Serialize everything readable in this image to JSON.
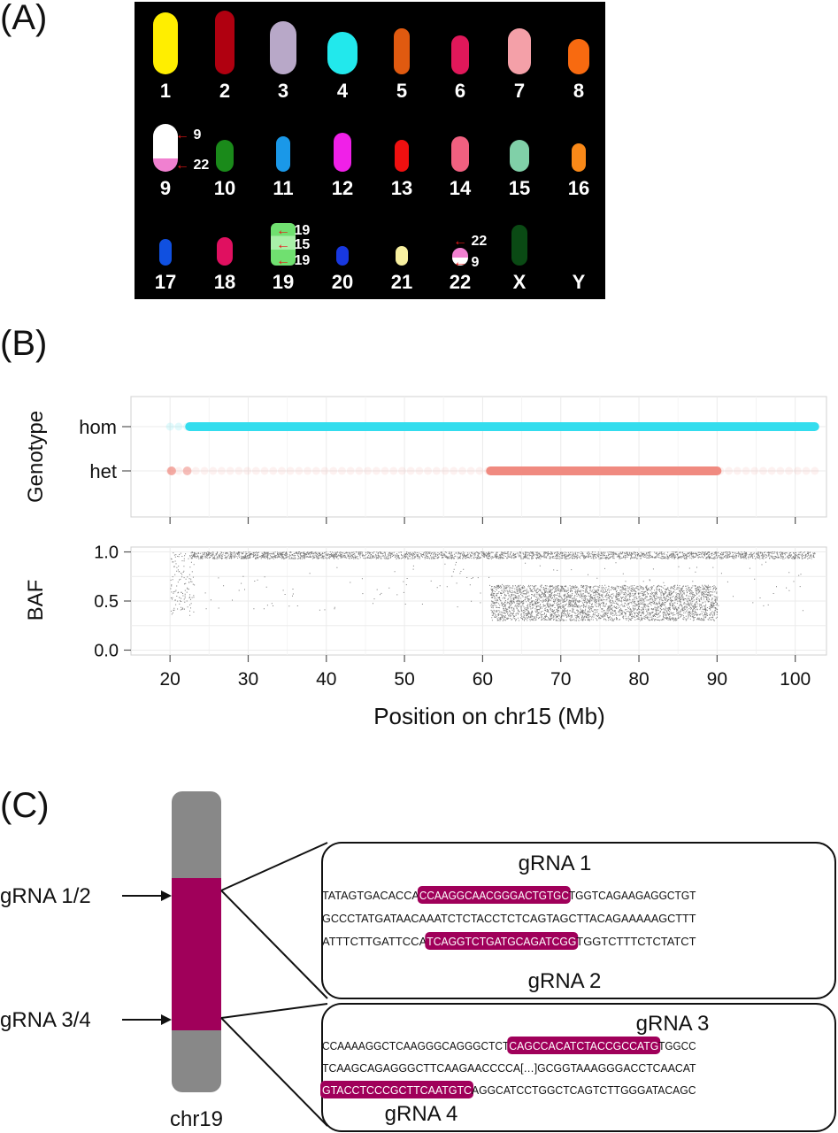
{
  "panels": {
    "a": "(A)",
    "b": "(B)",
    "c": "(C)"
  },
  "karyotype": {
    "chromosomes": [
      {
        "label": "1",
        "color": "#ffee00"
      },
      {
        "label": "2",
        "color": "#b00010"
      },
      {
        "label": "3",
        "color": "#b8a8c8"
      },
      {
        "label": "4",
        "color": "#22e8ec"
      },
      {
        "label": "5",
        "color": "#e05a10"
      },
      {
        "label": "6",
        "color": "#e0185a"
      },
      {
        "label": "7",
        "color": "#f4a0a8"
      },
      {
        "label": "8",
        "color": "#f86a10"
      },
      {
        "label": "9",
        "color": "#ffffff"
      },
      {
        "label": "10",
        "color": "#1a8a1a"
      },
      {
        "label": "11",
        "color": "#1a98e8"
      },
      {
        "label": "12",
        "color": "#f020e8"
      },
      {
        "label": "13",
        "color": "#f01010"
      },
      {
        "label": "14",
        "color": "#f06080"
      },
      {
        "label": "15",
        "color": "#80d0a8"
      },
      {
        "label": "16",
        "color": "#f88818"
      },
      {
        "label": "17",
        "color": "#1050e0"
      },
      {
        "label": "18",
        "color": "#e01060"
      },
      {
        "label": "19",
        "color": "#70e070"
      },
      {
        "label": "20",
        "color": "#1838e0"
      },
      {
        "label": "21",
        "color": "#f8f0a0"
      },
      {
        "label": "22",
        "color": "#f080d0"
      },
      {
        "label": "X",
        "color": "#0a4a14"
      },
      {
        "label": "Y",
        "color": "#000000"
      }
    ],
    "translocation_9": [
      "9",
      "22"
    ],
    "translocation_19": [
      "19",
      "15",
      "19"
    ],
    "translocation_22": [
      "22",
      "9"
    ]
  },
  "genotype_plot": {
    "ylabel": "Genotype",
    "categories": [
      "hom",
      "het"
    ]
  },
  "chart_data": {
    "type": "scatter",
    "xlabel": "Position on chr15 (Mb)",
    "xlim": [
      15,
      104
    ],
    "xticks": [
      20,
      30,
      40,
      50,
      60,
      70,
      80,
      90,
      100
    ],
    "ylabel": "BAF",
    "ylim": [
      -0.05,
      1.05
    ],
    "yticks": [
      "0.0",
      "0.5",
      "1.0"
    ],
    "grid": true,
    "series": [
      {
        "name": "hom",
        "color": "#33ddee",
        "x_range": [
          22.5,
          102.5
        ],
        "y": 1.0
      },
      {
        "name": "het",
        "color": "#f08a80",
        "x_range": [
          61,
          90
        ],
        "y": 0.5
      }
    ]
  },
  "crispr": {
    "chromosome": "chr19",
    "chrom_color": "#a0005a",
    "grna12_label": "gRNA 1/2",
    "grna34_label": "gRNA 3/4",
    "box1": {
      "top_label": "gRNA 1",
      "bottom_label": "gRNA 2",
      "line1": {
        "pre": "TATAGTGACACCA",
        "hl": "CCAAGGCAACGGGACTGTGC",
        "post": "TGGTCAGAAGAGGCTGT"
      },
      "line2": "GCCCTATGATAACAAATCTCTACCTCTCAGTAGCTTACAGAAAAAGCTTT",
      "line3": {
        "pre": "ATTTCTTGATTCCA",
        "hl": "TCAGGTCTGATGCAGATCGG",
        "post": "TGGTCTTTCTCTATCT"
      }
    },
    "box2": {
      "top_label": "gRNA 3",
      "bottom_label": "gRNA 4",
      "line1": {
        "pre": "CCAAAAGGCTCAAGGGCAGGGCTCT",
        "hl": "CAGCCACATCTACCGCCATG",
        "post": "TGGCC"
      },
      "line2": "TCAAGCAGAGGGCTTCAAGAACCCCA[…]GCGGTAAAGGGACCTCAACAT",
      "line3": {
        "pre": "",
        "hl": "GTACCTCCCGCTTCAATGTC",
        "post": "AGGCATCCTGGCTCAGTCTTGGGATACAGC"
      }
    }
  }
}
